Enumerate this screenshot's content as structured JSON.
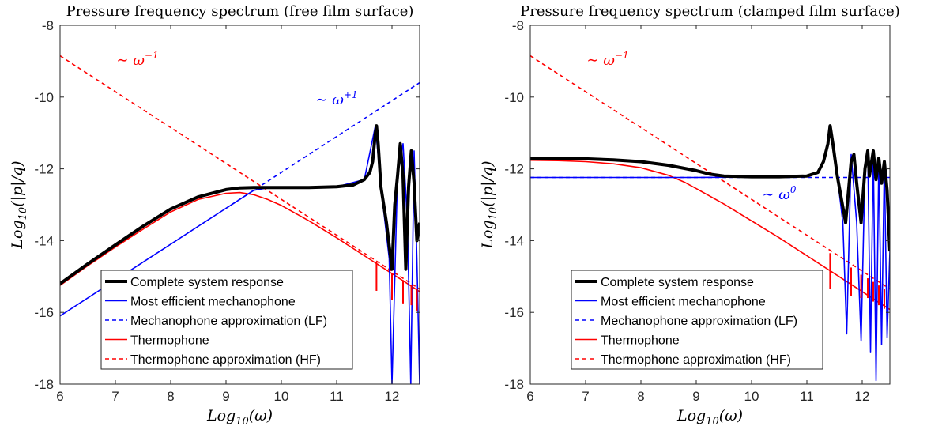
{
  "colors": {
    "complete": "#000000",
    "mechanophone": "#0000ff",
    "thermophone": "#ff0000",
    "axes": "#262626",
    "background": "#ffffff"
  },
  "chart_data": [
    {
      "type": "line",
      "title": "Pressure frequency spectrum (free film surface)",
      "xlabel": "Log10(ω)",
      "ylabel": "Log10(|p|/q)",
      "xlim": [
        6,
        12.5
      ],
      "ylim": [
        -18,
        -8
      ],
      "x_ticks": [
        "6",
        "7",
        "8",
        "9",
        "10",
        "11",
        "12"
      ],
      "y_ticks": [
        "-8",
        "-10",
        "-12",
        "-14",
        "-16",
        "-18"
      ],
      "log_scale": false,
      "grid": false,
      "legend_position": "bottom-center",
      "annotations": [
        {
          "text_base": "∼ ω",
          "text_exp": "−1",
          "color": "#ff0000",
          "x": 7.4,
          "y": -9.1
        },
        {
          "text_base": "∼ ω",
          "text_exp": "+1",
          "color": "#0000ff",
          "x": 11.0,
          "y": -10.2
        }
      ],
      "series": [
        {
          "name": "Complete system response",
          "style": "solid-thick",
          "color": "#000000",
          "x": [
            6,
            6.5,
            7,
            7.5,
            8,
            8.5,
            9,
            9.25,
            9.5,
            9.75,
            10,
            10.5,
            11,
            11.3,
            11.5,
            11.6,
            11.65,
            11.7,
            11.72,
            11.75,
            11.8,
            11.9,
            12,
            12.05,
            12.1,
            12.15,
            12.2,
            12.25,
            12.3,
            12.35,
            12.4,
            12.45,
            12.5
          ],
          "y": [
            -15.2,
            -14.65,
            -14.12,
            -13.6,
            -13.12,
            -12.78,
            -12.58,
            -12.53,
            -12.52,
            -12.52,
            -12.52,
            -12.52,
            -12.5,
            -12.45,
            -12.3,
            -12.1,
            -11.8,
            -11.0,
            -10.8,
            -11.3,
            -12.5,
            -13.5,
            -14.8,
            -13.0,
            -12.2,
            -11.3,
            -12.2,
            -14.8,
            -12.5,
            -11.5,
            -12.4,
            -14.0,
            -13.5
          ]
        },
        {
          "name": "Most efficient mechanophone",
          "style": "solid",
          "color": "#0000ff",
          "x": [
            6,
            7,
            8,
            9,
            9.5,
            9.75,
            10,
            10.5,
            11,
            11.5,
            11.7,
            11.8,
            11.95,
            12,
            12.1,
            12.2,
            12.28,
            12.34,
            12.4,
            12.45,
            12.5
          ],
          "y": [
            -16.1,
            -15.1,
            -14.1,
            -13.1,
            -12.6,
            -12.53,
            -12.52,
            -12.52,
            -12.5,
            -12.3,
            -10.8,
            -12.5,
            -14.5,
            -18,
            -12.2,
            -11.3,
            -13.5,
            -18,
            -11.5,
            -14.5,
            -18
          ]
        },
        {
          "name": "Mechanophone approximation (LF)",
          "style": "dashed",
          "color": "#0000ff",
          "x": [
            9,
            12.5
          ],
          "y": [
            -13.1,
            -9.6
          ]
        },
        {
          "name": "Thermophone",
          "style": "solid",
          "color": "#ff0000",
          "x": [
            6,
            6.5,
            7,
            7.5,
            8,
            8.5,
            9,
            9.25,
            9.5,
            9.75,
            10,
            10.5,
            11,
            11.5,
            11.7,
            11.75,
            11.8,
            12,
            12.2,
            12.4,
            12.5
          ],
          "y": [
            -15.25,
            -14.7,
            -14.18,
            -13.68,
            -13.2,
            -12.85,
            -12.68,
            -12.66,
            -12.72,
            -12.85,
            -13.02,
            -13.45,
            -13.92,
            -14.42,
            -14.62,
            -14.67,
            -14.72,
            -14.92,
            -15.12,
            -15.32,
            -15.42
          ]
        },
        {
          "name": "Thermophone approximation (HF)",
          "style": "dashed",
          "color": "#ff0000",
          "x": [
            6,
            12.5
          ],
          "y": [
            -8.85,
            -15.35
          ]
        }
      ],
      "spikes": [
        {
          "color": "#ff0000",
          "x": 11.72,
          "y_from": -14.6,
          "y_to": -15.4
        },
        {
          "color": "#ff0000",
          "x": 12.0,
          "y_from": -14.9,
          "y_to": -15.65
        },
        {
          "color": "#ff0000",
          "x": 12.2,
          "y_from": -15.1,
          "y_to": -15.75
        },
        {
          "color": "#ff0000",
          "x": 12.35,
          "y_from": -15.25,
          "y_to": -15.8
        },
        {
          "color": "#ff0000",
          "x": 12.45,
          "y_from": -15.35,
          "y_to": -15.95
        }
      ]
    },
    {
      "type": "line",
      "title": "Pressure frequency spectrum (clamped film surface)",
      "xlabel": "Log10(ω)",
      "ylabel": "Log10(|p|/q)",
      "xlim": [
        6,
        12.5
      ],
      "ylim": [
        -18,
        -8
      ],
      "x_ticks": [
        "6",
        "7",
        "8",
        "9",
        "10",
        "11",
        "12"
      ],
      "y_ticks": [
        "-8",
        "-10",
        "-12",
        "-14",
        "-16",
        "-18"
      ],
      "log_scale": false,
      "grid": false,
      "legend_position": "bottom-center",
      "annotations": [
        {
          "text_base": "∼ ω",
          "text_exp": "−1",
          "color": "#ff0000",
          "x": 7.4,
          "y": -9.1
        },
        {
          "text_base": "∼ ω",
          "text_exp": "0",
          "color": "#0000ff",
          "x": 10.5,
          "y": -12.85
        }
      ],
      "series": [
        {
          "name": "Complete system response",
          "style": "solid-thick",
          "color": "#000000",
          "x": [
            6,
            6.5,
            7,
            7.5,
            8,
            8.5,
            9,
            9.25,
            9.5,
            10,
            10.5,
            11,
            11.2,
            11.3,
            11.38,
            11.42,
            11.47,
            11.55,
            11.7,
            11.8,
            11.85,
            11.9,
            11.98,
            12.05,
            12.1,
            12.13,
            12.2,
            12.25,
            12.3,
            12.35,
            12.4,
            12.45,
            12.5
          ],
          "y": [
            -11.7,
            -11.7,
            -11.72,
            -11.75,
            -11.8,
            -11.9,
            -12.05,
            -12.15,
            -12.2,
            -12.22,
            -12.22,
            -12.2,
            -12.1,
            -11.8,
            -11.3,
            -10.8,
            -11.3,
            -12.2,
            -13.5,
            -11.8,
            -11.6,
            -12.4,
            -13.5,
            -12.0,
            -11.5,
            -12.2,
            -11.5,
            -12.3,
            -11.7,
            -12.4,
            -11.8,
            -12.6,
            -14.3
          ]
        },
        {
          "name": "Most efficient mechanophone",
          "style": "solid",
          "color": "#0000ff",
          "x": [
            6,
            7,
            8,
            9,
            10,
            11,
            11.2,
            11.3,
            11.38,
            11.42,
            11.47,
            11.55,
            11.65,
            11.72,
            11.8,
            11.9,
            11.98,
            12.05,
            12.1,
            12.15,
            12.2,
            12.25,
            12.3,
            12.35,
            12.4,
            12.45,
            12.5
          ],
          "y": [
            -12.24,
            -12.24,
            -12.24,
            -12.24,
            -12.23,
            -12.2,
            -12.1,
            -11.8,
            -11.3,
            -10.8,
            -11.3,
            -12.2,
            -13.5,
            -16.6,
            -11.6,
            -13.5,
            -16.8,
            -12.0,
            -11.5,
            -17.1,
            -11.5,
            -17.9,
            -11.7,
            -16.9,
            -11.8,
            -16.7,
            -14.3
          ]
        },
        {
          "name": "Mechanophone approximation (LF)",
          "style": "dashed",
          "color": "#0000ff",
          "x": [
            6,
            12.5
          ],
          "y": [
            -12.24,
            -12.24
          ]
        },
        {
          "name": "Thermophone",
          "style": "solid",
          "color": "#ff0000",
          "x": [
            6,
            6.5,
            7,
            7.5,
            8,
            8.5,
            8.8,
            9,
            9.2,
            9.5,
            10,
            10.5,
            11,
            11.5,
            12,
            12.5
          ],
          "y": [
            -11.76,
            -11.77,
            -11.8,
            -11.86,
            -11.97,
            -12.18,
            -12.38,
            -12.55,
            -12.72,
            -12.98,
            -13.45,
            -13.92,
            -14.42,
            -14.92,
            -15.42,
            -15.92
          ]
        },
        {
          "name": "Thermophone approximation (HF)",
          "style": "dashed",
          "color": "#ff0000",
          "x": [
            6,
            12.5
          ],
          "y": [
            -8.85,
            -15.35
          ]
        }
      ],
      "spikes": [
        {
          "color": "#ff0000",
          "x": 11.42,
          "y_from": -14.35,
          "y_to": -15.35
        },
        {
          "color": "#ff0000",
          "x": 11.8,
          "y_from": -14.75,
          "y_to": -15.55
        },
        {
          "color": "#ff0000",
          "x": 11.98,
          "y_from": -14.95,
          "y_to": -15.6
        },
        {
          "color": "#ff0000",
          "x": 12.1,
          "y_from": -15.05,
          "y_to": -15.6
        },
        {
          "color": "#ff0000",
          "x": 12.2,
          "y_from": -15.15,
          "y_to": -15.7
        },
        {
          "color": "#ff0000",
          "x": 12.3,
          "y_from": -15.25,
          "y_to": -15.8
        },
        {
          "color": "#ff0000",
          "x": 12.4,
          "y_from": -15.35,
          "y_to": -15.9
        }
      ]
    }
  ]
}
